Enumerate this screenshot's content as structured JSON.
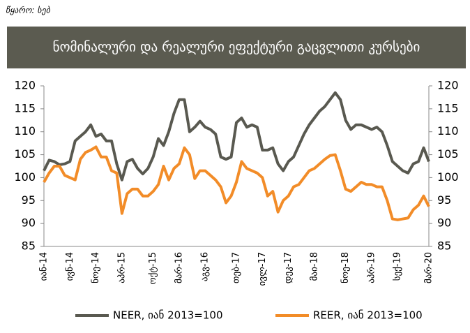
{
  "chart_data": {
    "type": "line",
    "source": "წყარო: სებ",
    "title": "ნომინალური და რეალური ეფექტური გაცვლითი კურსები",
    "categories": [
      "იან-14",
      null,
      null,
      null,
      null,
      "ივნ-14",
      null,
      null,
      null,
      null,
      "ნოე-14",
      null,
      null,
      null,
      null,
      "აპრ-15",
      null,
      null,
      null,
      null,
      null,
      "ოქტ-15",
      null,
      null,
      null,
      null,
      "მარ-16",
      null,
      null,
      null,
      null,
      "აგვ-16",
      null,
      null,
      null,
      null,
      null,
      "თებ-17",
      null,
      null,
      null,
      null,
      "ივლ-17",
      null,
      null,
      null,
      null,
      "დეკ-17",
      null,
      null,
      null,
      null,
      "მაი-18",
      null,
      null,
      null,
      null,
      null,
      "ნოე-18",
      null,
      null,
      null,
      null,
      "აპრ-19",
      null,
      null,
      null,
      null,
      "სექ-19",
      null,
      null,
      null,
      null,
      null,
      "მარ-20"
    ],
    "series": [
      {
        "name": "NEER, იან 2013=100",
        "color": "#595950",
        "values": [
          101.5,
          103.8,
          103.5,
          102.8,
          103.0,
          103.5,
          108.0,
          109.0,
          110.0,
          111.5,
          109.0,
          109.5,
          108.0,
          108.0,
          103.0,
          99.5,
          103.5,
          104.0,
          102.0,
          100.8,
          102.0,
          104.5,
          108.5,
          107.0,
          110.0,
          114.0,
          117.0,
          117.0,
          110.0,
          111.0,
          112.3,
          111.0,
          110.5,
          109.5,
          104.5,
          104.0,
          104.5,
          112.0,
          113.0,
          111.0,
          111.5,
          111.0,
          106.0,
          106.0,
          106.5,
          103.0,
          101.5,
          103.5,
          104.5,
          107.0,
          109.5,
          111.5,
          113.0,
          114.5,
          115.5,
          117.0,
          118.5,
          117.0,
          112.5,
          110.5,
          111.5,
          111.5,
          111.0,
          110.5,
          111.0,
          110.0,
          107.0,
          103.5,
          102.5,
          101.5,
          101.0,
          103.0,
          103.5,
          106.5,
          103.5
        ]
      },
      {
        "name": "REER, იან 2013=100",
        "color": "#f28c28",
        "values": [
          99.0,
          101.0,
          102.5,
          102.5,
          100.5,
          100.0,
          99.5,
          104.0,
          105.5,
          106.0,
          106.7,
          104.5,
          104.5,
          101.5,
          101.0,
          92.2,
          96.5,
          97.5,
          97.5,
          96.0,
          96.0,
          97.0,
          98.5,
          102.5,
          99.5,
          102.0,
          103.0,
          106.5,
          105.0,
          99.8,
          101.5,
          101.5,
          100.5,
          99.5,
          98.0,
          94.5,
          96.0,
          99.0,
          103.5,
          102.0,
          101.5,
          101.0,
          100.0,
          96.0,
          97.0,
          92.5,
          95.0,
          96.0,
          98.0,
          98.5,
          100.0,
          101.5,
          102.0,
          103.0,
          104.0,
          104.8,
          105.0,
          101.5,
          97.5,
          97.0,
          98.0,
          99.0,
          98.5,
          98.5,
          98.0,
          98.0,
          95.0,
          91.0,
          90.8,
          91.0,
          91.2,
          93.0,
          94.0,
          96.0,
          93.7
        ]
      }
    ],
    "ylim": [
      85,
      120
    ],
    "yticks": [
      85,
      90,
      95,
      100,
      105,
      110,
      115,
      120
    ],
    "y2lim": [
      85,
      120
    ],
    "y2ticks": [
      85,
      90,
      95,
      100,
      105,
      110,
      115,
      120
    ],
    "legend": "bottom"
  }
}
